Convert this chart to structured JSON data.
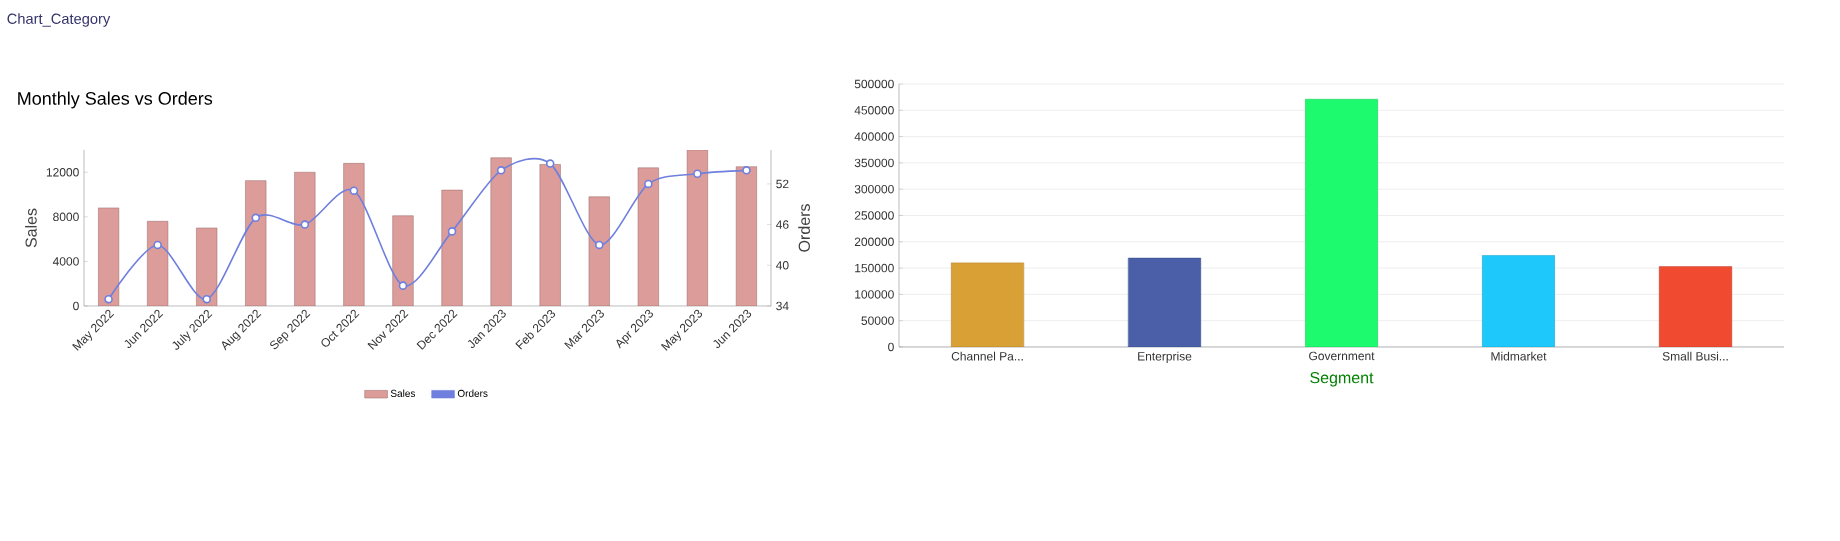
{
  "chart_data": [
    {
      "type": "bar",
      "title": "Monthly Sales vs Orders",
      "annotations": [
        "Chart_Category"
      ],
      "ylabel": "Sales",
      "y2label": "Orders",
      "categories": [
        "May 2022",
        "Jun 2022",
        "July 2022",
        "Aug 2022",
        "Sep 2022",
        "Oct 2022",
        "Nov 2022",
        "Dec 2022",
        "Jan 2023",
        "Feb 2023",
        "Mar 2023",
        "Apr 2023",
        "May 2023",
        "Jun 2023"
      ],
      "series": [
        {
          "name": "Sales",
          "type": "bar",
          "color": "#dc9c9a",
          "values": [
            8800,
            7600,
            7000,
            11250,
            12000,
            12800,
            8100,
            10400,
            13300,
            12700,
            9800,
            12400,
            14000,
            12500
          ]
        },
        {
          "name": "Orders",
          "type": "line",
          "axis": "y2",
          "color": "#6f7fdd",
          "values": [
            35,
            43,
            35,
            47,
            46,
            51,
            37,
            45,
            54,
            55,
            43,
            52,
            53.5,
            54
          ]
        }
      ],
      "ylim": [
        0,
        14000
      ],
      "yticks": [
        0,
        4000,
        8000,
        12000
      ],
      "y2lim": [
        34,
        57
      ],
      "y2ticks": [
        34,
        40,
        46,
        52
      ],
      "legend": "bottom",
      "marker": "circle"
    },
    {
      "type": "bar",
      "xlabel": "Segment",
      "categories": [
        "Channel Pa...",
        "Enterprise",
        "Government",
        "Midmarket",
        "Small Busi..."
      ],
      "values": [
        160000,
        169000,
        471000,
        174000,
        153000
      ],
      "colors": [
        "#d9a036",
        "#4a5fa8",
        "#1efa6e",
        "#1ec8fa",
        "#f04a30"
      ],
      "ylim": [
        0,
        500000
      ],
      "yticks": [
        0,
        50000,
        100000,
        150000,
        200000,
        250000,
        300000,
        350000,
        400000,
        450000,
        500000
      ],
      "grid": "y"
    }
  ]
}
